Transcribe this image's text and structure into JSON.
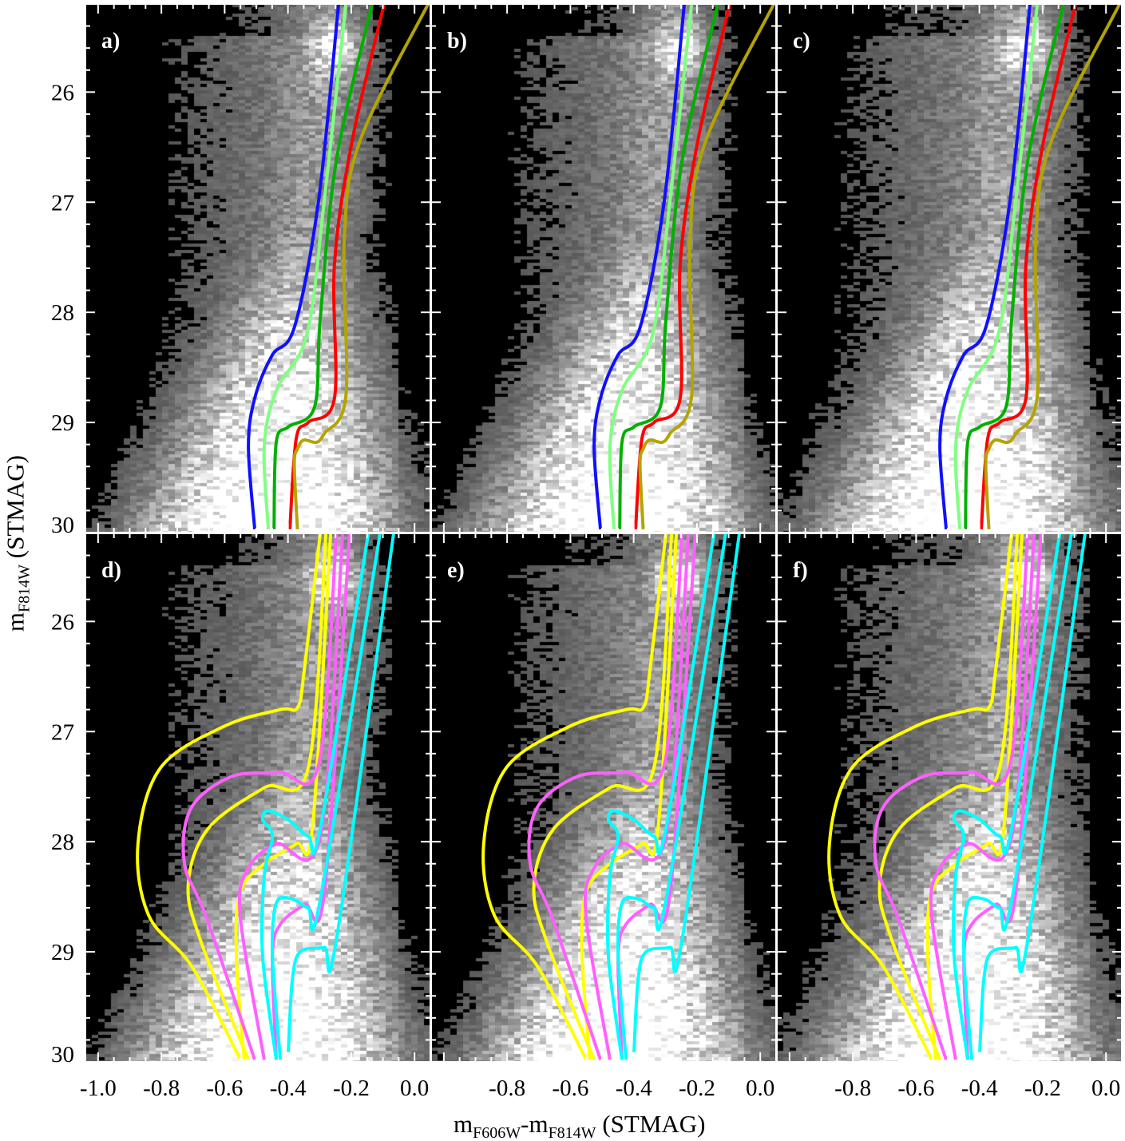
{
  "chart_data": {
    "type": "line",
    "description_type": "Hess diagram panels with isochrone overlays",
    "xlabel": {
      "main": "m",
      "sub1": "F606W",
      "mid": "-m",
      "sub2": "F814W",
      "unit": " (STMAG)"
    },
    "ylabel": {
      "main": "m",
      "sub": "F814W",
      "unit": " (STMAG)"
    },
    "xlim": [
      -1.04,
      0.05
    ],
    "ylim": [
      30.0,
      25.2
    ],
    "xticks_bottom_left": [
      "-1.0",
      "-0.8",
      "-0.6",
      "-0.4",
      "-0.2",
      "0.0"
    ],
    "xticks_bottom_other": [
      "-0.8",
      "-0.6",
      "-0.4",
      "-0.2",
      "0.0"
    ],
    "yticks": [
      "26",
      "27",
      "28",
      "29",
      "30"
    ],
    "panels": [
      {
        "label": "a)",
        "row": 0,
        "col": 0,
        "set": "top"
      },
      {
        "label": "b)",
        "row": 0,
        "col": 1,
        "set": "top"
      },
      {
        "label": "c)",
        "row": 0,
        "col": 2,
        "set": "top"
      },
      {
        "label": "d)",
        "row": 1,
        "col": 0,
        "set": "bottom"
      },
      {
        "label": "e)",
        "row": 1,
        "col": 1,
        "set": "bottom"
      },
      {
        "label": "f)",
        "row": 1,
        "col": 2,
        "set": "bottom"
      }
    ],
    "series_top": [
      {
        "name": "blue",
        "color": "#1010ff",
        "points": [
          [
            -0.24,
            25.2
          ],
          [
            -0.303,
            26.98
          ],
          [
            -0.379,
            28.13
          ],
          [
            -0.45,
            28.39
          ],
          [
            -0.505,
            28.78
          ],
          [
            -0.525,
            29.22
          ],
          [
            -0.505,
            29.97
          ]
        ]
      },
      {
        "name": "light-green",
        "color": "#80ff80",
        "points": [
          [
            -0.217,
            25.2
          ],
          [
            -0.285,
            26.98
          ],
          [
            -0.34,
            28.2
          ],
          [
            -0.437,
            28.71
          ],
          [
            -0.475,
            29.22
          ],
          [
            -0.462,
            29.97
          ]
        ]
      },
      {
        "name": "green",
        "color": "#00b000",
        "points": [
          [
            -0.134,
            25.2
          ],
          [
            -0.247,
            26.62
          ],
          [
            -0.298,
            28.06
          ],
          [
            -0.316,
            28.86
          ],
          [
            -0.399,
            29.04
          ],
          [
            -0.437,
            29.18
          ],
          [
            -0.444,
            29.97
          ]
        ]
      },
      {
        "name": "red",
        "color": "#ff0000",
        "points": [
          [
            -0.096,
            25.2
          ],
          [
            -0.197,
            26.44
          ],
          [
            -0.253,
            27.56
          ],
          [
            -0.253,
            28.78
          ],
          [
            -0.336,
            29.0
          ],
          [
            -0.374,
            29.15
          ],
          [
            -0.394,
            29.97
          ]
        ]
      },
      {
        "name": "olive",
        "color": "#b4a400",
        "points": [
          [
            0.043,
            25.2
          ],
          [
            -0.172,
            26.44
          ],
          [
            -0.222,
            27.34
          ],
          [
            -0.217,
            28.76
          ],
          [
            -0.285,
            29.1
          ],
          [
            -0.31,
            29.18
          ],
          [
            -0.35,
            29.16
          ],
          [
            -0.37,
            29.24
          ],
          [
            -0.38,
            29.38
          ],
          [
            -0.37,
            29.97
          ]
        ]
      }
    ],
    "series_bottom": [
      {
        "name": "yellow-1",
        "color": "#ffff00",
        "points": [
          [
            -0.298,
            25.2
          ],
          [
            -0.348,
            26.43
          ],
          [
            -0.369,
            26.78
          ],
          [
            -0.424,
            26.8
          ],
          [
            -0.6,
            26.95
          ],
          [
            -0.803,
            27.33
          ],
          [
            -0.874,
            28.02
          ],
          [
            -0.84,
            28.67
          ],
          [
            -0.702,
            29.14
          ],
          [
            -0.55,
            29.98
          ]
        ]
      },
      {
        "name": "yellow-2",
        "color": "#ffff00",
        "points": [
          [
            -0.28,
            25.2
          ],
          [
            -0.336,
            27.33
          ],
          [
            -0.475,
            27.51
          ],
          [
            -0.652,
            27.88
          ],
          [
            -0.715,
            28.38
          ],
          [
            -0.677,
            28.89
          ],
          [
            -0.525,
            29.98
          ]
        ]
      },
      {
        "name": "yellow-3",
        "color": "#ffff00",
        "points": [
          [
            -0.265,
            25.2
          ],
          [
            -0.323,
            27.88
          ],
          [
            -0.374,
            28.02
          ],
          [
            -0.475,
            28.2
          ],
          [
            -0.551,
            28.46
          ],
          [
            -0.563,
            29.04
          ],
          [
            -0.538,
            29.98
          ]
        ]
      },
      {
        "name": "magenta-1",
        "color": "#ff60ff",
        "points": [
          [
            -0.247,
            25.2
          ],
          [
            -0.303,
            27.3
          ],
          [
            -0.429,
            27.37
          ],
          [
            -0.58,
            27.41
          ],
          [
            -0.707,
            27.7
          ],
          [
            -0.727,
            28.2
          ],
          [
            -0.656,
            28.7
          ],
          [
            -0.505,
            29.98
          ]
        ]
      },
      {
        "name": "magenta-2",
        "color": "#ff60ff",
        "points": [
          [
            -0.227,
            25.2
          ],
          [
            -0.298,
            27.95
          ],
          [
            -0.437,
            28.02
          ],
          [
            -0.525,
            28.24
          ],
          [
            -0.551,
            28.67
          ],
          [
            -0.475,
            29.98
          ]
        ]
      },
      {
        "name": "magenta-3",
        "color": "#ff60ff",
        "points": [
          [
            -0.205,
            25.2
          ],
          [
            -0.285,
            28.46
          ],
          [
            -0.348,
            28.57
          ],
          [
            -0.424,
            28.75
          ],
          [
            -0.449,
            29.04
          ],
          [
            -0.437,
            29.98
          ]
        ]
      },
      {
        "name": "cyan-1",
        "color": "#00ffff",
        "points": [
          [
            -0.146,
            25.2
          ],
          [
            -0.298,
            27.88
          ],
          [
            -0.336,
            27.95
          ],
          [
            -0.399,
            27.8
          ],
          [
            -0.462,
            27.72
          ],
          [
            -0.48,
            27.8
          ],
          [
            -0.449,
            27.95
          ],
          [
            -0.475,
            28.31
          ],
          [
            -0.48,
            29.04
          ],
          [
            -0.437,
            29.98
          ]
        ]
      },
      {
        "name": "cyan-2",
        "color": "#00ffff",
        "points": [
          [
            -0.109,
            25.2
          ],
          [
            -0.298,
            28.53
          ],
          [
            -0.336,
            28.6
          ],
          [
            -0.386,
            28.52
          ],
          [
            -0.437,
            28.56
          ],
          [
            -0.449,
            29.04
          ],
          [
            -0.424,
            29.98
          ]
        ]
      },
      {
        "name": "cyan-3",
        "color": "#00ffff",
        "points": [
          [
            -0.066,
            25.2
          ],
          [
            -0.247,
            28.89
          ],
          [
            -0.285,
            28.96
          ],
          [
            -0.361,
            29.0
          ],
          [
            -0.386,
            29.25
          ],
          [
            -0.399,
            29.91
          ]
        ]
      }
    ]
  }
}
